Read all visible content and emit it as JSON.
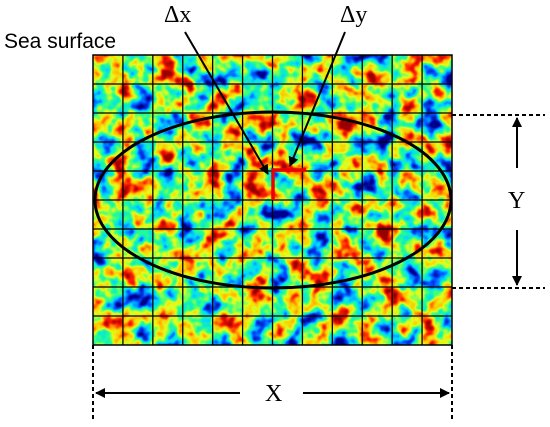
{
  "labels": {
    "sea_surface": "Sea surface",
    "delta_x": "Δx",
    "delta_y": "Δy",
    "y_dimension": "Y",
    "x_dimension": "X"
  }
}
